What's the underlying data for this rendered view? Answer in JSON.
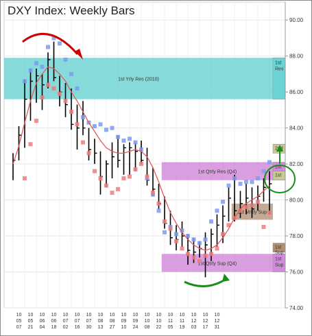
{
  "chart_data": {
    "type": "bar",
    "title": "DXY Index: Weekly Bars",
    "ylim": [
      74,
      91
    ],
    "y_ticks": [
      "90.00",
      "88.00",
      "86.00",
      "84.00",
      "82.00",
      "80.00",
      "78.00",
      "76.00",
      "74.00"
    ],
    "y_tick_values": [
      90,
      88,
      86,
      84,
      82,
      80,
      78,
      76,
      74
    ],
    "grid": true,
    "x_ticks": [
      {
        "year": "10",
        "month": "05",
        "day": "07"
      },
      {
        "year": "10",
        "month": "05",
        "day": "21"
      },
      {
        "year": "10",
        "month": "06",
        "day": "04"
      },
      {
        "year": "10",
        "month": "06",
        "day": "18"
      },
      {
        "year": "10",
        "month": "07",
        "day": "02"
      },
      {
        "year": "10",
        "month": "07",
        "day": "16"
      },
      {
        "year": "10",
        "month": "07",
        "day": "30"
      },
      {
        "year": "10",
        "month": "08",
        "day": "13"
      },
      {
        "year": "10",
        "month": "08",
        "day": "27"
      },
      {
        "year": "10",
        "month": "09",
        "day": "10"
      },
      {
        "year": "10",
        "month": "09",
        "day": "24"
      },
      {
        "year": "10",
        "month": "10",
        "day": "08"
      },
      {
        "year": "10",
        "month": "10",
        "day": "22"
      },
      {
        "year": "10",
        "month": "11",
        "day": "05"
      },
      {
        "year": "10",
        "month": "11",
        "day": "19"
      },
      {
        "year": "10",
        "month": "12",
        "day": "03"
      },
      {
        "year": "10",
        "month": "12",
        "day": "17"
      },
      {
        "year": "10",
        "month": "12",
        "day": "31"
      }
    ],
    "bars": [
      {
        "high": 82.6,
        "low": 81.1,
        "close": 82.2
      },
      {
        "high": 84.1,
        "low": 82.2,
        "close": 83.6
      },
      {
        "high": 86.7,
        "low": 82.9,
        "close": 85.6
      },
      {
        "high": 87.3,
        "low": 84.4,
        "close": 86.6
      },
      {
        "high": 87.3,
        "low": 85.4,
        "close": 86.9
      },
      {
        "high": 87.0,
        "low": 85.0,
        "close": 86.4
      },
      {
        "high": 88.2,
        "low": 86.2,
        "close": 87.8
      },
      {
        "high": 88.8,
        "low": 86.6,
        "close": 86.8
      },
      {
        "high": 86.9,
        "low": 85.2,
        "close": 86.0
      },
      {
        "high": 86.5,
        "low": 84.6,
        "close": 85.3
      },
      {
        "high": 86.2,
        "low": 83.9,
        "close": 84.2
      },
      {
        "high": 85.3,
        "low": 82.8,
        "close": 84.0
      },
      {
        "high": 85.5,
        "low": 83.6,
        "close": 84.0
      },
      {
        "high": 84.0,
        "low": 82.2,
        "close": 82.8
      },
      {
        "high": 83.4,
        "low": 82.0,
        "close": 82.6
      },
      {
        "high": 82.7,
        "low": 80.3,
        "close": 81.3
      },
      {
        "high": 82.2,
        "low": 80.7,
        "close": 82.0
      },
      {
        "high": 83.2,
        "low": 81.2,
        "close": 82.4
      },
      {
        "high": 83.6,
        "low": 81.8,
        "close": 82.2
      },
      {
        "high": 83.1,
        "low": 81.4,
        "close": 82.9
      },
      {
        "high": 83.2,
        "low": 81.4,
        "close": 82.9
      },
      {
        "high": 83.2,
        "low": 81.6,
        "close": 82.7
      },
      {
        "high": 83.3,
        "low": 82.0,
        "close": 82.2
      },
      {
        "high": 82.9,
        "low": 80.8,
        "close": 81.1
      },
      {
        "high": 81.8,
        "low": 80.2,
        "close": 80.6
      },
      {
        "high": 80.9,
        "low": 79.5,
        "close": 79.8
      },
      {
        "high": 80.2,
        "low": 78.4,
        "close": 78.7
      },
      {
        "high": 79.4,
        "low": 77.5,
        "close": 77.9
      },
      {
        "high": 78.6,
        "low": 77.2,
        "close": 77.8
      },
      {
        "high": 78.8,
        "low": 77.4,
        "close": 78.0
      },
      {
        "high": 78.1,
        "low": 76.4,
        "close": 77.2
      },
      {
        "high": 77.9,
        "low": 76.5,
        "close": 77.1
      },
      {
        "high": 77.7,
        "low": 76.8,
        "close": 77.3
      },
      {
        "high": 78.2,
        "low": 75.7,
        "close": 77.5
      },
      {
        "high": 78.4,
        "low": 76.6,
        "close": 78.1
      },
      {
        "high": 79.2,
        "low": 77.4,
        "close": 78.6
      },
      {
        "high": 79.7,
        "low": 77.6,
        "close": 79.1
      },
      {
        "high": 80.7,
        "low": 78.8,
        "close": 80.1
      },
      {
        "high": 81.4,
        "low": 78.8,
        "close": 79.4
      },
      {
        "high": 80.5,
        "low": 79.0,
        "close": 79.8
      },
      {
        "high": 80.9,
        "low": 79.2,
        "close": 80.1
      },
      {
        "high": 80.7,
        "low": 79.0,
        "close": 79.5
      },
      {
        "high": 80.8,
        "low": 79.4,
        "close": 80.2
      },
      {
        "high": 81.2,
        "low": 79.9,
        "close": 80.7
      },
      {
        "high": 81.6,
        "low": 79.2,
        "close": 80.9
      }
    ],
    "moving_average": [
      82.0,
      83.0,
      84.3,
      85.5,
      86.5,
      87.0,
      87.4,
      87.3,
      87.0,
      86.6,
      86.0,
      85.5,
      84.9,
      84.3,
      83.8,
      83.3,
      82.9,
      82.7,
      82.6,
      82.6,
      82.7,
      82.8,
      82.7,
      82.4,
      81.8,
      81.0,
      80.1,
      79.3,
      78.7,
      78.2,
      77.8,
      77.5,
      77.3,
      77.2,
      77.3,
      77.5,
      77.9,
      78.4,
      79.0,
      79.5,
      79.8,
      80.0,
      80.2,
      80.5,
      80.8
    ],
    "upper_dots": [
      null,
      null,
      86.6,
      87.2,
      87.6,
      87.4,
      88.5,
      89.0,
      88.7,
      87.8,
      87.0,
      86.2,
      84.6,
      84.3,
      84.1,
      84.2,
      83.9,
      84.0,
      83.5,
      83.3,
      83.4,
      83.2,
      82.8,
      81.2,
      80.3,
      79.4,
      78.2,
      78.5,
      78.1,
      78.3,
      78.0,
      77.8,
      77.6,
      77.8,
      78.8,
      79.4,
      79.9,
      80.8,
      81.2,
      80.9,
      81.0,
      81.0,
      81.2,
      81.6,
      82.1
    ],
    "lower_dots": [
      null,
      null,
      81.2,
      83.1,
      84.4,
      85.7,
      86.4,
      86.2,
      85.9,
      85.5,
      84.9,
      84.2,
      83.2,
      82.6,
      81.6,
      81.2,
      80.8,
      80.4,
      80.6,
      81.2,
      81.3,
      81.7,
      82.0,
      81.3,
      80.4,
      79.8,
      78.8,
      78.4,
      77.7,
      77.3,
      77.0,
      76.8,
      76.6,
      76.9,
      77.0,
      77.3,
      78.1,
      78.6,
      79.0,
      79.4,
      79.6,
      79.7,
      79.9,
      78.5,
      79.3
    ],
    "zones": [
      {
        "label": "1st Yrly Res (2010)",
        "side_label": [
          "1st",
          "Res"
        ],
        "from": 85.6,
        "to": 87.9,
        "color": "#5fcfcf",
        "x_start_bar": 0
      },
      {
        "label": "1st Qtrly Res (Q4)",
        "side_label": [
          "1st",
          "Res"
        ],
        "from": 81.1,
        "to": 82.1,
        "color": "#cc7fd6",
        "x_start_bar": 26
      },
      {
        "label": "1st Mntly Sup",
        "side_label": [],
        "from": 78.9,
        "to": 79.8,
        "color": "#b08e70",
        "x_start_bar": 38
      },
      {
        "label": "1st Qtrly Sup (Q4)",
        "side_label": [
          "1st",
          "Sup"
        ],
        "from": 76.0,
        "to": 77.0,
        "color": "#cc7fd6",
        "x_start_bar": 26
      }
    ],
    "side_boxes": [
      {
        "label": "2nd",
        "value_from": 82.6,
        "value_to": 83.1,
        "color": "#c8c89a"
      },
      {
        "label": "1st",
        "value_from": 81.1,
        "value_to": 81.6,
        "color": "#c8c89a"
      },
      {
        "label": "1st Sup",
        "value_from": 77.1,
        "value_to": 77.6,
        "color": "#b08e70"
      }
    ],
    "colors": {
      "bar": "#000000",
      "ma_line": "#e05a5a",
      "upper_dot": "#7b9cf0",
      "lower_dot": "#f07b7b",
      "annotation_top_arrow": "#cc0000",
      "annotation_bottom_arrow": "#1a8c1a",
      "circle": "#1a8c1a"
    }
  }
}
